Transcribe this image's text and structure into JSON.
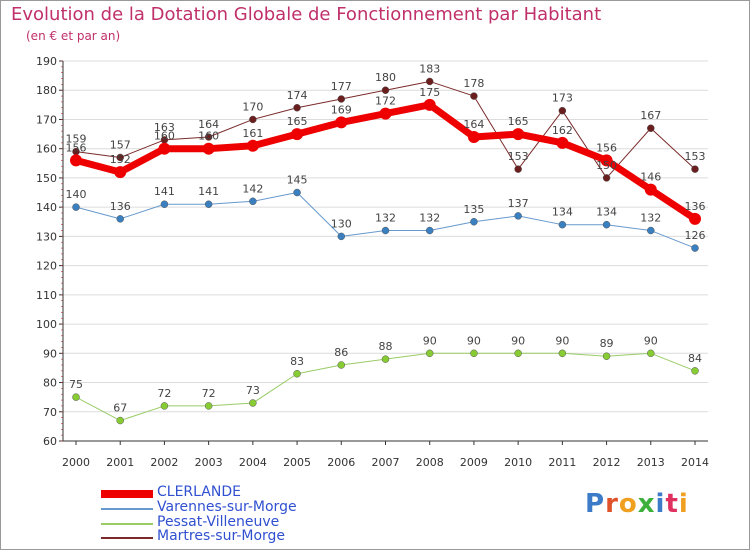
{
  "title": "Evolution de la Dotation Globale de Fonctionnement par Habitant",
  "subtitle": "(en € et par an)",
  "logo": "Proxiti",
  "colors": {
    "title": "#c0306a",
    "legend_text": "#3050d0",
    "grid": "#dcdcdc",
    "axis": "#333333",
    "label": "#444444"
  },
  "chart_data": {
    "type": "line",
    "x": [
      2000,
      2001,
      2002,
      2003,
      2004,
      2005,
      2006,
      2007,
      2008,
      2009,
      2010,
      2011,
      2012,
      2013,
      2014
    ],
    "ylim": [
      60,
      190
    ],
    "yticks": [
      60,
      70,
      80,
      90,
      100,
      110,
      120,
      130,
      140,
      150,
      160,
      170,
      180,
      190
    ],
    "grid": true,
    "legend_position": "bottom-left",
    "series": [
      {
        "name": "CLERLANDE",
        "color": "#ee0000",
        "marker_color": "#ee0000",
        "line_width": 7,
        "values": [
          156,
          152,
          160,
          160,
          161,
          165,
          169,
          172,
          175,
          164,
          165,
          162,
          156,
          146,
          136
        ]
      },
      {
        "name": "Varennes-sur-Morge",
        "color": "#6699cc",
        "marker_color": "#3a7fc0",
        "line_width": 1,
        "values": [
          140,
          136,
          141,
          141,
          142,
          145,
          130,
          132,
          132,
          135,
          137,
          134,
          134,
          132,
          126
        ]
      },
      {
        "name": "Pessat-Villeneuve",
        "color": "#99cc66",
        "marker_color": "#88cc33",
        "line_width": 1,
        "values": [
          75,
          67,
          72,
          72,
          73,
          83,
          86,
          88,
          90,
          90,
          90,
          90,
          89,
          90,
          84
        ]
      },
      {
        "name": "Martres-sur-Morge",
        "color": "#7a2a2a",
        "marker_color": "#6b1e1e",
        "line_width": 1,
        "values": [
          159,
          157,
          163,
          164,
          170,
          174,
          177,
          180,
          183,
          178,
          153,
          173,
          150,
          167,
          153
        ]
      }
    ]
  }
}
